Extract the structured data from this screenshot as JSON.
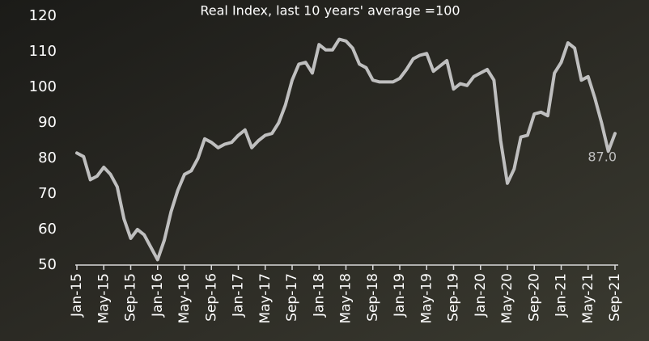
{
  "chart_data": {
    "type": "line",
    "title": "Real Index, last 10 years' average =100",
    "categories": [
      "Jan-15",
      null,
      null,
      null,
      "May-15",
      null,
      null,
      null,
      "Sep-15",
      null,
      null,
      null,
      "Jan-16",
      null,
      null,
      null,
      "May-16",
      null,
      null,
      null,
      "Sep-16",
      null,
      null,
      null,
      "Jan-17",
      null,
      null,
      null,
      "May-17",
      null,
      null,
      null,
      "Sep-17",
      null,
      null,
      null,
      "Jan-18",
      null,
      null,
      null,
      "May-18",
      null,
      null,
      null,
      "Sep-18",
      null,
      null,
      null,
      "Jan-19",
      null,
      null,
      null,
      "May-19",
      null,
      null,
      null,
      "Sep-19",
      null,
      null,
      null,
      "Jan-20",
      null,
      null,
      null,
      "May-20",
      null,
      null,
      null,
      "Sep-20",
      null,
      null,
      null,
      "Jan-21",
      null,
      null,
      null,
      "May-21",
      null,
      null,
      null,
      "Sep-21"
    ],
    "values": [
      81.5,
      80.5,
      74,
      75,
      77.5,
      75.5,
      72,
      63,
      57.5,
      60,
      58.5,
      55,
      51.5,
      57,
      65,
      71,
      75.5,
      76.5,
      80,
      85.5,
      84.5,
      83,
      84,
      84.5,
      86.5,
      88,
      83,
      85,
      86.5,
      87,
      90,
      95,
      102,
      106.5,
      107,
      104,
      112,
      110.5,
      110.5,
      113.5,
      113,
      111,
      106.5,
      105.5,
      102,
      101.5,
      101.5,
      101.5,
      102.5,
      105,
      108,
      109,
      109.5,
      104.5,
      106,
      107.5,
      99.5,
      101,
      100.5,
      103,
      104,
      105,
      102,
      85,
      73,
      77,
      86,
      86.5,
      92.5,
      93,
      92,
      104,
      107,
      112.5,
      111,
      102,
      103,
      97,
      90,
      82,
      87
    ],
    "value_labels": [
      null,
      null,
      null,
      null,
      null,
      null,
      null,
      null,
      null,
      null,
      null,
      null,
      null,
      null,
      null,
      null,
      null,
      null,
      null,
      null,
      null,
      null,
      null,
      null,
      null,
      null,
      null,
      null,
      null,
      null,
      null,
      null,
      null,
      null,
      null,
      null,
      null,
      null,
      null,
      null,
      null,
      null,
      null,
      null,
      null,
      null,
      null,
      null,
      null,
      null,
      null,
      null,
      null,
      null,
      null,
      null,
      null,
      null,
      null,
      null,
      null,
      null,
      null,
      null,
      null,
      null,
      null,
      null,
      null,
      null,
      null,
      null,
      null,
      null,
      null,
      null,
      null,
      null,
      null,
      null,
      "87.0"
    ],
    "color": "#bfbfbf",
    "ylim": [
      50,
      120
    ],
    "yticks": [
      50,
      60,
      70,
      80,
      90,
      100,
      110,
      120
    ]
  }
}
